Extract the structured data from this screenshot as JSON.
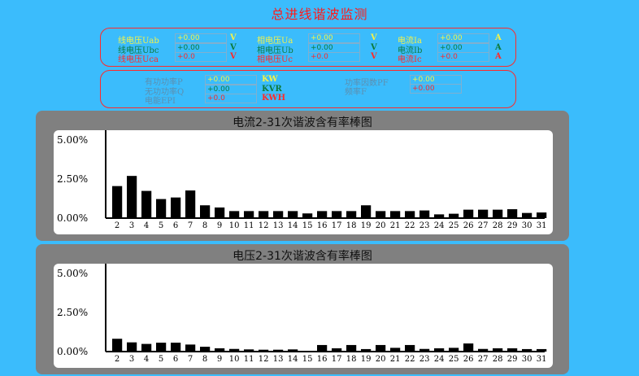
{
  "title": "总进线谐波监测",
  "line_voltage": [
    {
      "label": "线电压Uab",
      "value": "+0.00",
      "unit": "V",
      "color": "#f2f24a"
    },
    {
      "label": "线电压Ubc",
      "value": "+0.00",
      "unit": "V",
      "color": "#0e7a3c"
    },
    {
      "label": "线电压Uca",
      "value": "+0.0",
      "unit": "V",
      "color": "#ff2a2a"
    }
  ],
  "phase_voltage": [
    {
      "label": "相电压Ua",
      "value": "+0.00",
      "unit": "V",
      "color": "#f2f24a"
    },
    {
      "label": "相电压Ub",
      "value": "+0.00",
      "unit": "V",
      "color": "#0e7a3c"
    },
    {
      "label": "相电压Uc",
      "value": "+0.0",
      "unit": "V",
      "color": "#ff2a2a"
    }
  ],
  "current": [
    {
      "label": "电流Ia",
      "value": "+0.00",
      "unit": "A",
      "color": "#f2f24a"
    },
    {
      "label": "电流Ib",
      "value": "+0.00",
      "unit": "A",
      "color": "#0e7a3c"
    },
    {
      "label": "电流Ic",
      "value": "+0.0",
      "unit": "A",
      "color": "#ff2a2a"
    }
  ],
  "power": [
    {
      "label": "有功功率P",
      "value": "+0.00",
      "unit": "KW",
      "color": "#f2f24a"
    },
    {
      "label": "无功功率Q",
      "value": "+0.00",
      "unit": "KVR",
      "color": "#0e7a3c"
    },
    {
      "label": "电能EPI",
      "value": "+0.0",
      "unit": "KWH",
      "color": "#ff2a2a"
    }
  ],
  "power_factor": {
    "label": "功率因数PF",
    "value": "+0.00"
  },
  "frequency": {
    "label": "频率F",
    "value": "+0.00"
  },
  "chart_data": [
    {
      "type": "bar",
      "title": "电流2-31次谐波含有率棒图",
      "categories": [
        "2",
        "3",
        "4",
        "5",
        "6",
        "7",
        "8",
        "9",
        "10",
        "11",
        "12",
        "13",
        "14",
        "15",
        "16",
        "17",
        "18",
        "19",
        "20",
        "21",
        "22",
        "23",
        "24",
        "25",
        "26",
        "27",
        "28",
        "29",
        "30",
        "31"
      ],
      "values": [
        2.05,
        2.7,
        1.74,
        1.22,
        1.32,
        1.77,
        0.82,
        0.68,
        0.45,
        0.45,
        0.45,
        0.45,
        0.45,
        0.3,
        0.45,
        0.45,
        0.45,
        0.82,
        0.45,
        0.45,
        0.45,
        0.49,
        0.24,
        0.28,
        0.54,
        0.54,
        0.54,
        0.57,
        0.33,
        0.36
      ],
      "yticks": [
        "0.00%",
        "2.50%",
        "5.00%"
      ],
      "ylim": [
        0,
        5
      ],
      "unit": "%",
      "bar_color": "#000000"
    },
    {
      "type": "bar",
      "title": "电压2-31次谐波含有率棒图",
      "categories": [
        "2",
        "3",
        "4",
        "5",
        "6",
        "7",
        "8",
        "9",
        "10",
        "11",
        "12",
        "13",
        "14",
        "15",
        "16",
        "17",
        "18",
        "19",
        "20",
        "21",
        "22",
        "23",
        "24",
        "25",
        "26",
        "27",
        "28",
        "29",
        "30",
        "31"
      ],
      "values": [
        0.82,
        0.59,
        0.49,
        0.57,
        0.57,
        0.45,
        0.31,
        0.21,
        0.17,
        0.14,
        0.12,
        0.12,
        0.14,
        0.05,
        0.42,
        0.21,
        0.42,
        0.16,
        0.42,
        0.24,
        0.42,
        0.17,
        0.21,
        0.24,
        0.52,
        0.17,
        0.21,
        0.21,
        0.16,
        0.16
      ],
      "yticks": [
        "0.00%",
        "2.50%",
        "5.00%"
      ],
      "ylim": [
        0,
        5
      ],
      "unit": "%",
      "bar_color": "#000000"
    }
  ]
}
